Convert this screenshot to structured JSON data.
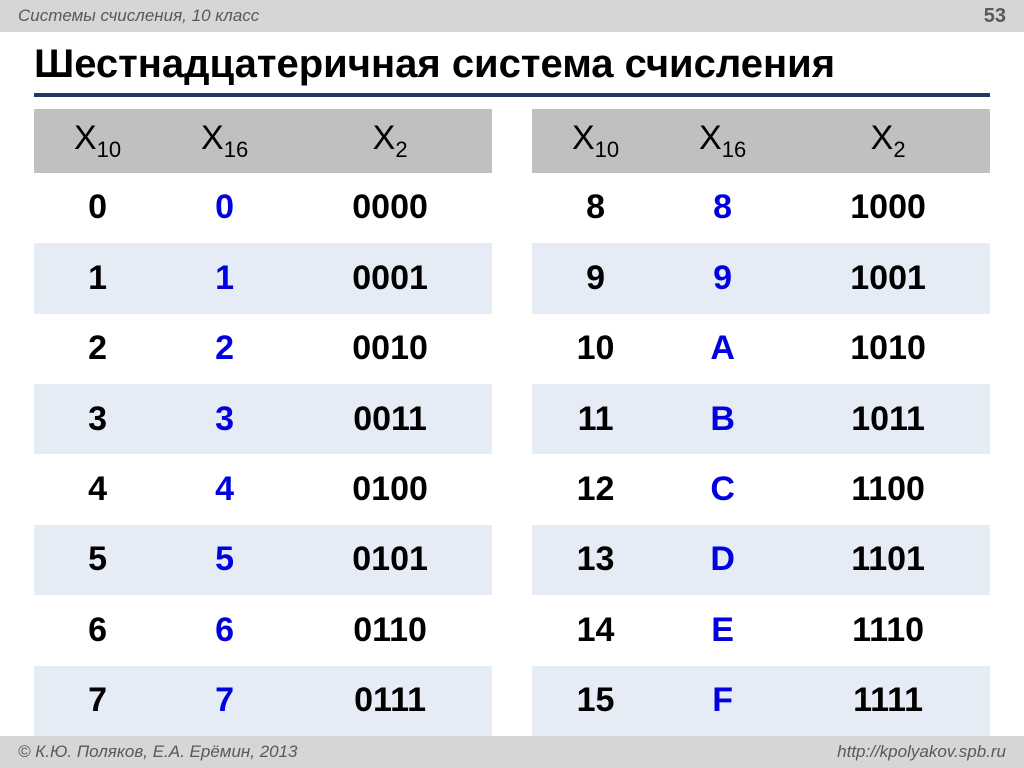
{
  "header": {
    "topic": "Системы счисления, 10 класс",
    "page_number": "53"
  },
  "title": "Шестнадцатеричная система счисления",
  "columns": {
    "dec": {
      "letter": "X",
      "sub": "10"
    },
    "hex": {
      "letter": "X",
      "sub": "16"
    },
    "bin": {
      "letter": "X",
      "sub": "2"
    }
  },
  "left_rows": [
    {
      "dec": "0",
      "hex": "0",
      "bin": "0000"
    },
    {
      "dec": "1",
      "hex": "1",
      "bin": "0001"
    },
    {
      "dec": "2",
      "hex": "2",
      "bin": "0010"
    },
    {
      "dec": "3",
      "hex": "3",
      "bin": "0011"
    },
    {
      "dec": "4",
      "hex": "4",
      "bin": "0100"
    },
    {
      "dec": "5",
      "hex": "5",
      "bin": "0101"
    },
    {
      "dec": "6",
      "hex": "6",
      "bin": "0110"
    },
    {
      "dec": "7",
      "hex": "7",
      "bin": "0111"
    }
  ],
  "right_rows": [
    {
      "dec": "8",
      "hex": "8",
      "bin": "1000"
    },
    {
      "dec": "9",
      "hex": "9",
      "bin": "1001"
    },
    {
      "dec": "10",
      "hex": "A",
      "bin": "1010"
    },
    {
      "dec": "11",
      "hex": "B",
      "bin": "1011"
    },
    {
      "dec": "12",
      "hex": "C",
      "bin": "1100"
    },
    {
      "dec": "13",
      "hex": "D",
      "bin": "1101"
    },
    {
      "dec": "14",
      "hex": "E",
      "bin": "1110"
    },
    {
      "dec": "15",
      "hex": "F",
      "bin": "1111"
    }
  ],
  "footer": {
    "authors": "© К.Ю. Поляков, Е.А. Ерёмин, 2013",
    "url": "http://kpolyakov.spb.ru"
  },
  "styling": {
    "header_bg": "#d6d6d6",
    "header_text": "#595959",
    "title_underline": "#1f3864",
    "table_header_bg": "#c0c0c0",
    "row_alt_bg": "#e6ecf5",
    "hex_color": "#0000e0",
    "body_font_size": 34,
    "title_font_size": 40
  }
}
